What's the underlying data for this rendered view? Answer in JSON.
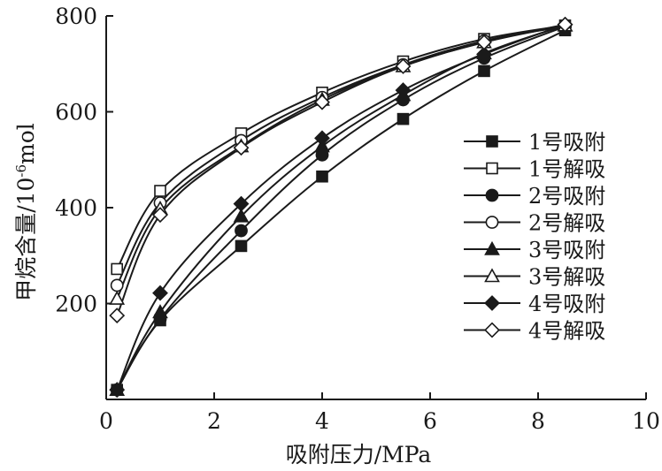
{
  "chart_data": {
    "type": "line",
    "title": "",
    "xlabel": "吸附压力/MPa",
    "ylabel": "甲烷含量/10⁻⁶mol",
    "ylabel_parts": {
      "main": "甲烷含量/10",
      "sup": "-6",
      "unit": "mol"
    },
    "xlim": [
      0,
      10
    ],
    "ylim": [
      0,
      800
    ],
    "x_ticks": [
      0,
      2,
      4,
      6,
      8,
      10
    ],
    "y_ticks": [
      200,
      400,
      600,
      800
    ],
    "grid": false,
    "legend_position": "right",
    "series": [
      {
        "name": "1号吸附",
        "marker": "square",
        "fill": "filled",
        "points": [
          [
            0.2,
            20
          ],
          [
            1.0,
            165
          ],
          [
            2.5,
            320
          ],
          [
            4.0,
            465
          ],
          [
            5.5,
            585
          ],
          [
            7.0,
            685
          ],
          [
            8.5,
            770
          ]
        ]
      },
      {
        "name": "1号解吸",
        "marker": "square",
        "fill": "open",
        "points": [
          [
            8.5,
            780
          ],
          [
            7.0,
            752
          ],
          [
            5.5,
            705
          ],
          [
            4.0,
            640
          ],
          [
            2.5,
            555
          ],
          [
            1.0,
            435
          ],
          [
            0.2,
            272
          ]
        ]
      },
      {
        "name": "2号吸附",
        "marker": "circle",
        "fill": "filled",
        "points": [
          [
            0.2,
            20
          ],
          [
            1.0,
            168
          ],
          [
            2.5,
            352
          ],
          [
            4.0,
            510
          ],
          [
            5.5,
            625
          ],
          [
            7.0,
            712
          ],
          [
            8.5,
            778
          ]
        ]
      },
      {
        "name": "2号解吸",
        "marker": "circle",
        "fill": "open",
        "points": [
          [
            8.5,
            778
          ],
          [
            7.0,
            748
          ],
          [
            5.5,
            698
          ],
          [
            4.0,
            630
          ],
          [
            2.5,
            540
          ],
          [
            1.0,
            410
          ],
          [
            0.2,
            238
          ]
        ]
      },
      {
        "name": "3号吸附",
        "marker": "triangle",
        "fill": "filled",
        "points": [
          [
            0.2,
            20
          ],
          [
            1.0,
            182
          ],
          [
            2.5,
            382
          ],
          [
            4.0,
            528
          ],
          [
            5.5,
            635
          ],
          [
            7.0,
            722
          ],
          [
            8.5,
            780
          ]
        ]
      },
      {
        "name": "3号解吸",
        "marker": "triangle",
        "fill": "open",
        "points": [
          [
            8.5,
            780
          ],
          [
            7.0,
            745
          ],
          [
            5.5,
            695
          ],
          [
            4.0,
            625
          ],
          [
            2.5,
            528
          ],
          [
            1.0,
            398
          ],
          [
            0.2,
            210
          ]
        ]
      },
      {
        "name": "4号吸附",
        "marker": "diamond",
        "fill": "filled",
        "points": [
          [
            0.2,
            20
          ],
          [
            1.0,
            222
          ],
          [
            2.5,
            408
          ],
          [
            4.0,
            545
          ],
          [
            5.5,
            645
          ],
          [
            7.0,
            720
          ],
          [
            8.5,
            782
          ]
        ]
      },
      {
        "name": "4号解吸",
        "marker": "diamond",
        "fill": "open",
        "points": [
          [
            8.5,
            782
          ],
          [
            7.0,
            745
          ],
          [
            5.5,
            695
          ],
          [
            4.0,
            620
          ],
          [
            2.5,
            525
          ],
          [
            1.0,
            385
          ],
          [
            0.2,
            175
          ]
        ]
      }
    ]
  }
}
